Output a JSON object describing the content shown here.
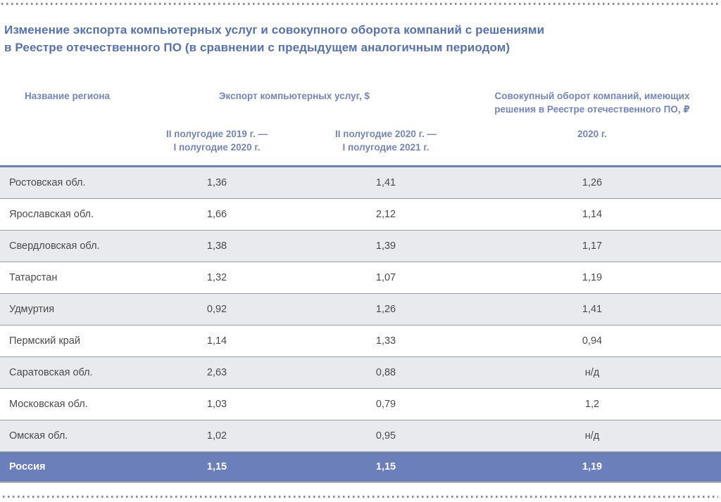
{
  "title": {
    "line1": "Изменение экспорта компьютерных услуг и совокупного оборота компаний с решениями",
    "line2": "в Реестре отечественного ПО (в сравнении с предыдущем аналогичным периодом)"
  },
  "header": {
    "region_col": "Название региона",
    "export_group": "Экспорт компьютерных услуг, $",
    "turnover_group": "Совокупный оборот компаний, имеющих решения в Реестре отечественного ПО, ₽",
    "export_period_1": [
      "II полугодие 2019 г. —",
      "I полугодие 2020 г."
    ],
    "export_period_2": [
      "II полугодие 2020 г. —",
      "I полугодие 2021 г."
    ],
    "turnover_period": "2020 г."
  },
  "colors": {
    "title_text": "#5571b5",
    "header_text": "#7285c1",
    "table_top_border": "#6b7fba",
    "row_shaded": "#e9eaee",
    "row_highlight": "#6b7fba",
    "row_divider": "#9e9ea1",
    "cell_text": "#4a4a4a"
  },
  "chart_data": {
    "type": "table",
    "title": "Изменение экспорта компьютерных услуг и совокупного оборота компаний с решениями в Реестре отечественного ПО (в сравнении с предыдущем аналогичным периодом)",
    "column_groups": [
      "Название региона",
      "Экспорт компьютерных услуг, $",
      "Совокупный оборот компаний, имеющих решения в Реестре отечественного ПО, ₽"
    ],
    "columns": [
      "Название региона",
      "Экспорт компьютерных услуг, $ — II полугодие 2019 г. — I полугодие 2020 г.",
      "Экспорт компьютерных услуг, $ — II полугодие 2020 г. — I полугодие 2021 г.",
      "Совокупный оборот компаний, имеющих решения в Реестре отечественного ПО, ₽ — 2020 г."
    ],
    "rows": [
      {
        "region": "Ростовская обл.",
        "values": [
          "1,36",
          "1,41",
          "1,26"
        ],
        "highlight": false
      },
      {
        "region": "Ярославская обл.",
        "values": [
          "1,66",
          "2,12",
          "1,14"
        ],
        "highlight": false
      },
      {
        "region": "Свердловская обл.",
        "values": [
          "1,38",
          "1,39",
          "1,17"
        ],
        "highlight": false
      },
      {
        "region": "Татарстан",
        "values": [
          "1,32",
          "1,07",
          "1,19"
        ],
        "highlight": false
      },
      {
        "region": "Удмуртия",
        "values": [
          "0,92",
          "1,26",
          "1,41"
        ],
        "highlight": false
      },
      {
        "region": "Пермский край",
        "values": [
          "1,14",
          "1,33",
          "0,94"
        ],
        "highlight": false
      },
      {
        "region": "Саратовская обл.",
        "values": [
          "2,63",
          "0,88",
          "н/д"
        ],
        "highlight": false
      },
      {
        "region": "Московская обл.",
        "values": [
          "1,03",
          "0,79",
          "1,2"
        ],
        "highlight": false
      },
      {
        "region": "Омская обл.",
        "values": [
          "1,02",
          "0,95",
          "н/д"
        ],
        "highlight": false
      },
      {
        "region": "Россия",
        "values": [
          "1,15",
          "1,15",
          "1,19"
        ],
        "highlight": true
      }
    ]
  }
}
